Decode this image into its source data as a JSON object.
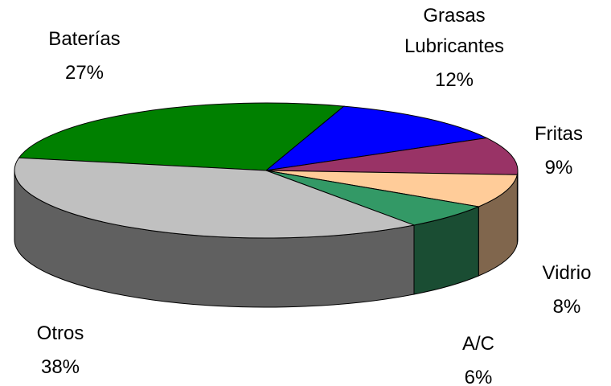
{
  "chart_data": {
    "type": "pie",
    "categories": [
      "Baterías",
      "Grasas\nLubricantes",
      "Fritas",
      "Vidrio",
      "A/C",
      "Otros"
    ],
    "values": [
      27,
      12,
      9,
      8,
      6,
      38
    ],
    "value_labels": [
      "27%",
      "12%",
      "9%",
      "8%",
      "6%",
      "38%"
    ],
    "colors": [
      "#008000",
      "#0000ff",
      "#993366",
      "#ffcc99",
      "#339966",
      "#c0c0c0"
    ]
  }
}
